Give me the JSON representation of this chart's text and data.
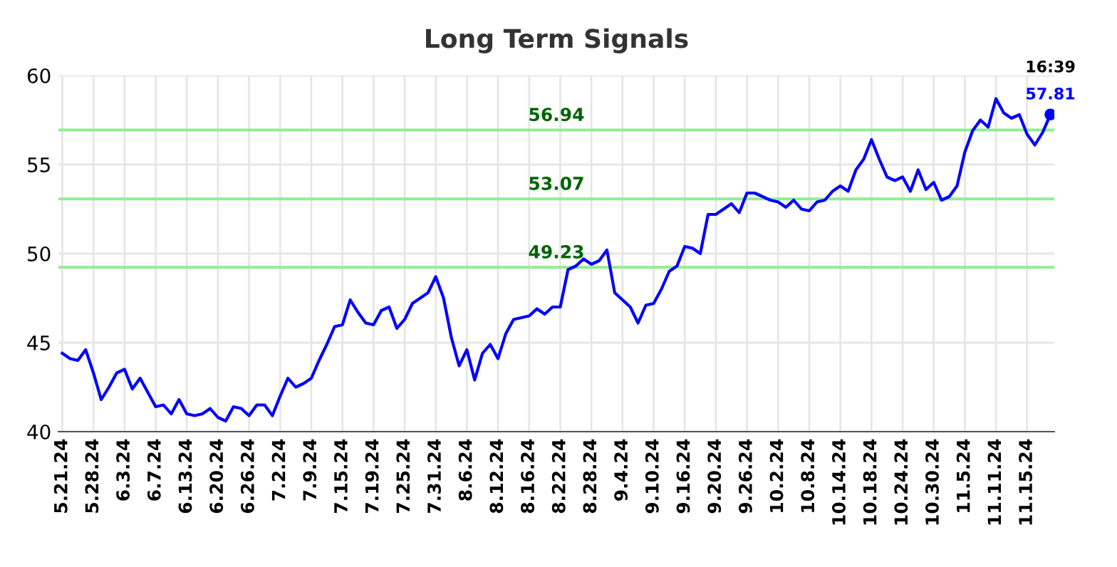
{
  "chart_data": {
    "type": "line",
    "title": "Long Term Signals",
    "categories": [
      "5.21.24",
      null,
      null,
      null,
      "5.28.24",
      null,
      null,
      null,
      "6.3.24",
      null,
      null,
      null,
      "6.7.24",
      null,
      null,
      null,
      "6.13.24",
      null,
      null,
      null,
      "6.20.24",
      null,
      null,
      null,
      "6.26.24",
      null,
      null,
      null,
      "7.2.24",
      null,
      null,
      null,
      "7.9.24",
      null,
      null,
      null,
      "7.15.24",
      null,
      null,
      null,
      "7.19.24",
      null,
      null,
      null,
      "7.25.24",
      null,
      null,
      null,
      "7.31.24",
      null,
      null,
      null,
      "8.6.24",
      null,
      null,
      null,
      "8.12.24",
      null,
      null,
      null,
      "8.16.24",
      null,
      null,
      null,
      "8.22.24",
      null,
      null,
      null,
      "8.28.24",
      null,
      null,
      null,
      "9.4.24",
      null,
      null,
      null,
      "9.10.24",
      null,
      null,
      null,
      "9.16.24",
      null,
      null,
      null,
      "9.20.24",
      null,
      null,
      null,
      "9.26.24",
      null,
      null,
      null,
      "10.2.24",
      null,
      null,
      null,
      "10.8.24",
      null,
      null,
      null,
      "10.14.24",
      null,
      null,
      null,
      "10.18.24",
      null,
      null,
      null,
      "10.24.24",
      null,
      null,
      null,
      "10.30.24",
      null,
      null,
      null,
      "11.5.24",
      null,
      null,
      null,
      "11.11.24",
      null,
      null,
      null,
      "11.15.24",
      null,
      null,
      null
    ],
    "series": [
      {
        "color": "#0000ff",
        "values": [
          44.4,
          44.1,
          44.0,
          44.6,
          43.3,
          41.8,
          42.5,
          43.3,
          43.5,
          42.4,
          43.0,
          42.2,
          41.4,
          41.5,
          41.0,
          41.8,
          41.0,
          40.9,
          41.0,
          41.3,
          40.8,
          40.6,
          41.4,
          41.3,
          40.9,
          41.5,
          41.5,
          40.9,
          42.0,
          43.0,
          42.5,
          42.7,
          43.0,
          44.0,
          44.9,
          45.9,
          46.0,
          47.4,
          46.7,
          46.1,
          46.0,
          46.8,
          47.0,
          45.8,
          46.3,
          47.2,
          47.5,
          47.8,
          48.7,
          47.5,
          45.3,
          43.7,
          44.6,
          42.9,
          44.4,
          44.9,
          44.1,
          45.5,
          46.3,
          46.4,
          46.5,
          46.9,
          46.6,
          47.0,
          47.0,
          49.1,
          49.3,
          49.7,
          49.4,
          49.6,
          50.2,
          47.8,
          47.4,
          47.0,
          46.1,
          47.1,
          47.2,
          48.0,
          49.0,
          49.3,
          50.4,
          50.3,
          50.0,
          52.2,
          52.2,
          52.5,
          52.8,
          52.3,
          53.4,
          53.4,
          53.2,
          53.0,
          52.9,
          52.6,
          53.0,
          52.5,
          52.4,
          52.9,
          53.0,
          53.5,
          53.8,
          53.5,
          54.7,
          55.3,
          56.4,
          55.3,
          54.3,
          54.1,
          54.3,
          53.5,
          54.7,
          53.6,
          54.0,
          53.0,
          53.2,
          53.8,
          55.7,
          56.9,
          57.5,
          57.1,
          58.7,
          57.9,
          57.6,
          57.8,
          56.7,
          56.1,
          56.8,
          57.81
        ]
      }
    ],
    "ylim": [
      40,
      60
    ],
    "yticks": [
      40,
      45,
      50,
      55,
      60
    ],
    "grid": true,
    "ref_lines": [
      {
        "axis": "y",
        "value": 56.94,
        "label": "56.94",
        "color": "#90ee90"
      },
      {
        "axis": "y",
        "value": 53.07,
        "label": "53.07",
        "color": "#90ee90"
      },
      {
        "axis": "y",
        "value": 49.23,
        "label": "49.23",
        "color": "#90ee90"
      }
    ],
    "annotations": [
      "16:39",
      {
        "text": "57.81",
        "y": 57.81
      }
    ]
  }
}
